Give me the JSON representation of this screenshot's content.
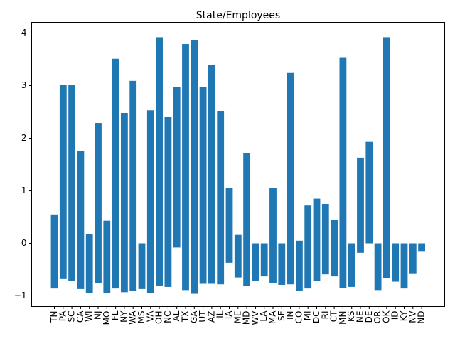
{
  "chart_data": {
    "type": "bar",
    "title": "State/Employees",
    "xlabel": "",
    "ylabel": "",
    "ylim": [
      -1.2,
      4.1
    ],
    "yticks": [
      -1,
      0,
      1,
      2,
      3,
      4
    ],
    "grid": false,
    "bar_color": "#1f77b4",
    "categories": [
      "TN",
      "PA",
      "SC",
      "CA",
      "WI",
      "NJ",
      "MO",
      "FL",
      "NY",
      "WA",
      "MS",
      "VA",
      "OH",
      "NC",
      "AL",
      "TX",
      "GA",
      "UT",
      "AZ",
      "IL",
      "IA",
      "ME",
      "MD",
      "WV",
      "LA",
      "MA",
      "SF",
      "IN",
      "CO",
      "MI",
      "DC",
      "RI",
      "CT",
      "MN",
      "KS",
      "NE",
      "DE",
      "OR",
      "OK",
      "ID",
      "KY",
      "NV",
      "ND"
    ],
    "bars": [
      {
        "low": -0.86,
        "high": 0.55
      },
      {
        "low": -0.68,
        "high": 3.02
      },
      {
        "low": -0.72,
        "high": 3.01
      },
      {
        "low": -0.87,
        "high": 1.75
      },
      {
        "low": -0.94,
        "high": 0.18
      },
      {
        "low": -0.75,
        "high": 2.29
      },
      {
        "low": -0.94,
        "high": 0.43
      },
      {
        "low": -0.86,
        "high": 3.51
      },
      {
        "low": -0.93,
        "high": 2.48
      },
      {
        "low": -0.91,
        "high": 3.09
      },
      {
        "low": -0.87,
        "high": 0.0
      },
      {
        "low": -0.95,
        "high": 2.53
      },
      {
        "low": -0.81,
        "high": 3.92
      },
      {
        "low": -0.83,
        "high": 2.41
      },
      {
        "low": -0.08,
        "high": 2.98
      },
      {
        "low": -0.89,
        "high": 3.79
      },
      {
        "low": -0.96,
        "high": 3.87
      },
      {
        "low": -0.77,
        "high": 2.98
      },
      {
        "low": -0.77,
        "high": 3.39
      },
      {
        "low": -0.78,
        "high": 2.52
      },
      {
        "low": -0.37,
        "high": 1.06
      },
      {
        "low": -0.65,
        "high": 0.16
      },
      {
        "low": -0.81,
        "high": 1.71
      },
      {
        "low": -0.72,
        "high": 0.0
      },
      {
        "low": -0.63,
        "high": 0.0
      },
      {
        "low": -0.75,
        "high": 1.05
      },
      {
        "low": -0.79,
        "high": 0.0
      },
      {
        "low": -0.78,
        "high": 3.24
      },
      {
        "low": -0.91,
        "high": 0.05
      },
      {
        "low": -0.86,
        "high": 0.72
      },
      {
        "low": -0.72,
        "high": 0.85
      },
      {
        "low": -0.59,
        "high": 0.75
      },
      {
        "low": -0.63,
        "high": 0.44
      },
      {
        "low": -0.85,
        "high": 3.54
      },
      {
        "low": -0.83,
        "high": 0.0
      },
      {
        "low": -0.18,
        "high": 1.63
      },
      {
        "low": 0.0,
        "high": 1.93
      },
      {
        "low": -0.89,
        "high": 0.0
      },
      {
        "low": -0.66,
        "high": 3.92
      },
      {
        "low": -0.73,
        "high": 0.0
      },
      {
        "low": -0.86,
        "high": 0.0
      },
      {
        "low": -0.57,
        "high": 0.0
      },
      {
        "low": -0.16,
        "high": 0.0
      }
    ]
  }
}
